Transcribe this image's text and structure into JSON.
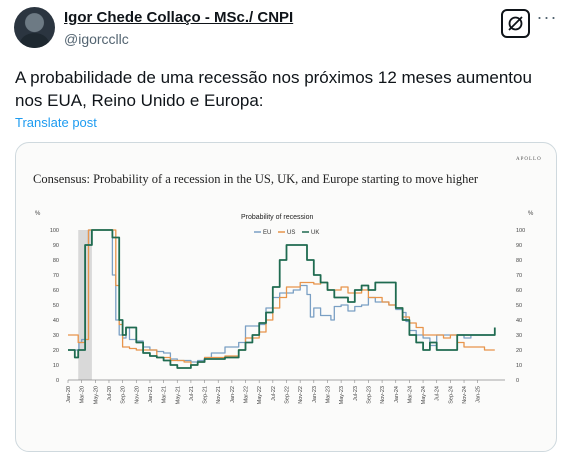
{
  "author": {
    "name": "Igor Chede Collaço - MSc./ CNPI",
    "handle": "@igorccllc"
  },
  "icons": {
    "grok": "grok-icon",
    "more": "more-icon"
  },
  "more_glyph": "···",
  "post": {
    "text": "A probabilidade de uma recessão nos próximos 12 meses aumentou nos EUA, Reino Unido e Europa:",
    "translate_label": "Translate post"
  },
  "chart_data": {
    "type": "line",
    "brand": "APOLLO",
    "title": "Consensus: Probability of a recession in the US, UK, and Europe starting to move higher",
    "legend_title": "Probability of recession",
    "y_unit_left": "%",
    "y_unit_right": "%",
    "ylim": [
      0,
      100
    ],
    "yticks": [
      0,
      10,
      20,
      30,
      40,
      50,
      60,
      70,
      80,
      90,
      100
    ],
    "xlim": [
      0,
      64
    ],
    "xticks": [
      {
        "label": "Jan-20",
        "x": 0
      },
      {
        "label": "Mar-20",
        "x": 2
      },
      {
        "label": "May-20",
        "x": 4
      },
      {
        "label": "Jul-20",
        "x": 6
      },
      {
        "label": "Sep-20",
        "x": 8
      },
      {
        "label": "Nov-20",
        "x": 10
      },
      {
        "label": "Jan-21",
        "x": 12
      },
      {
        "label": "Mar-21",
        "x": 14
      },
      {
        "label": "May-21",
        "x": 16
      },
      {
        "label": "Jul-21",
        "x": 18
      },
      {
        "label": "Sep-21",
        "x": 20
      },
      {
        "label": "Nov-21",
        "x": 22
      },
      {
        "label": "Jan-22",
        "x": 24
      },
      {
        "label": "Mar-22",
        "x": 26
      },
      {
        "label": "May-22",
        "x": 28
      },
      {
        "label": "Jul-22",
        "x": 30
      },
      {
        "label": "Sep-22",
        "x": 32
      },
      {
        "label": "Nov-22",
        "x": 34
      },
      {
        "label": "Jan-23",
        "x": 36
      },
      {
        "label": "Mar-23",
        "x": 38
      },
      {
        "label": "May-23",
        "x": 40
      },
      {
        "label": "Jul-23",
        "x": 42
      },
      {
        "label": "Sep-23",
        "x": 44
      },
      {
        "label": "Nov-23",
        "x": 46
      },
      {
        "label": "Jan-24",
        "x": 48
      },
      {
        "label": "Mar-24",
        "x": 50
      },
      {
        "label": "May-24",
        "x": 52
      },
      {
        "label": "Jul-24",
        "x": 54
      },
      {
        "label": "Sep-24",
        "x": 56
      },
      {
        "label": "Nov-24",
        "x": 58
      },
      {
        "label": "Jan-25",
        "x": 60
      }
    ],
    "recession_band": {
      "from": 1.5,
      "to": 3.5
    },
    "series": [
      {
        "name": "EU",
        "color": "#7a9fc4",
        "points": [
          [
            0,
            20
          ],
          [
            1,
            20
          ],
          [
            1.6,
            25
          ],
          [
            2,
            27
          ],
          [
            2.5,
            90
          ],
          [
            3,
            100
          ],
          [
            4,
            100
          ],
          [
            5,
            100
          ],
          [
            6,
            100
          ],
          [
            6.5,
            70
          ],
          [
            7,
            40
          ],
          [
            7.5,
            30
          ],
          [
            8,
            28
          ],
          [
            8.5,
            35
          ],
          [
            9,
            27
          ],
          [
            10,
            26
          ],
          [
            11,
            22
          ],
          [
            12,
            20
          ],
          [
            13,
            19
          ],
          [
            14,
            18
          ],
          [
            15,
            14
          ],
          [
            16,
            13
          ],
          [
            17,
            13
          ],
          [
            18,
            12
          ],
          [
            19,
            13
          ],
          [
            20,
            15
          ],
          [
            21,
            18
          ],
          [
            22,
            18
          ],
          [
            23,
            22
          ],
          [
            24,
            22
          ],
          [
            25,
            25
          ],
          [
            26,
            36
          ],
          [
            27,
            36
          ],
          [
            28,
            37
          ],
          [
            29,
            48
          ],
          [
            30,
            55
          ],
          [
            31,
            58
          ],
          [
            32,
            58
          ],
          [
            33,
            60
          ],
          [
            34,
            63
          ],
          [
            35,
            57
          ],
          [
            35.5,
            42
          ],
          [
            36,
            48
          ],
          [
            37,
            43
          ],
          [
            38,
            43
          ],
          [
            38.5,
            40
          ],
          [
            39,
            49
          ],
          [
            40,
            50
          ],
          [
            41,
            46
          ],
          [
            42,
            49
          ],
          [
            43,
            50
          ],
          [
            44,
            55
          ],
          [
            45,
            52
          ],
          [
            46,
            52
          ],
          [
            47,
            50
          ],
          [
            48,
            47
          ],
          [
            49,
            45
          ],
          [
            49.5,
            39
          ],
          [
            50,
            33
          ],
          [
            51,
            30
          ],
          [
            52,
            28
          ],
          [
            53,
            23
          ],
          [
            54,
            30
          ],
          [
            55,
            30
          ],
          [
            56,
            30
          ],
          [
            57,
            30
          ],
          [
            58,
            28
          ],
          [
            59,
            30
          ],
          [
            60,
            30
          ],
          [
            61,
            30
          ],
          [
            62,
            30
          ],
          [
            62.5,
            32
          ]
        ]
      },
      {
        "name": "US",
        "color": "#e8944a",
        "points": [
          [
            0,
            30
          ],
          [
            1,
            30
          ],
          [
            1.5,
            25
          ],
          [
            2,
            25
          ],
          [
            2.5,
            27
          ],
          [
            3,
            100
          ],
          [
            3.5,
            100
          ],
          [
            4,
            100
          ],
          [
            5,
            100
          ],
          [
            6,
            100
          ],
          [
            6.5,
            100
          ],
          [
            7,
            63
          ],
          [
            7.5,
            37
          ],
          [
            8,
            22
          ],
          [
            9,
            21
          ],
          [
            10,
            20
          ],
          [
            11,
            20
          ],
          [
            12,
            20
          ],
          [
            13,
            15
          ],
          [
            14,
            15
          ],
          [
            15,
            13
          ],
          [
            16,
            13
          ],
          [
            17,
            12
          ],
          [
            18,
            10
          ],
          [
            19,
            12
          ],
          [
            20,
            15
          ],
          [
            21,
            15
          ],
          [
            22,
            15
          ],
          [
            23,
            16
          ],
          [
            24,
            16
          ],
          [
            25,
            20
          ],
          [
            26,
            28
          ],
          [
            27,
            28
          ],
          [
            28,
            32
          ],
          [
            29,
            40
          ],
          [
            30,
            48
          ],
          [
            31,
            55
          ],
          [
            32,
            62
          ],
          [
            33,
            62
          ],
          [
            34,
            65
          ],
          [
            35,
            65
          ],
          [
            36,
            64
          ],
          [
            37,
            65
          ],
          [
            38,
            60
          ],
          [
            39,
            60
          ],
          [
            40,
            62
          ],
          [
            41,
            58
          ],
          [
            42,
            58
          ],
          [
            43,
            60
          ],
          [
            44,
            55
          ],
          [
            45,
            55
          ],
          [
            46,
            52
          ],
          [
            47,
            50
          ],
          [
            48,
            48
          ],
          [
            49,
            42
          ],
          [
            50,
            38
          ],
          [
            51,
            35
          ],
          [
            52,
            30
          ],
          [
            53,
            30
          ],
          [
            54,
            30
          ],
          [
            55,
            28
          ],
          [
            56,
            30
          ],
          [
            57,
            25
          ],
          [
            58,
            22
          ],
          [
            59,
            22
          ],
          [
            60,
            22
          ],
          [
            61,
            20
          ],
          [
            62,
            20
          ],
          [
            62.5,
            20
          ]
        ]
      },
      {
        "name": "UK",
        "color": "#1f6b50",
        "points": [
          [
            0,
            20
          ],
          [
            1,
            15
          ],
          [
            1.5,
            20
          ],
          [
            2,
            20
          ],
          [
            2.5,
            90
          ],
          [
            3,
            90
          ],
          [
            3.5,
            100
          ],
          [
            4,
            100
          ],
          [
            5,
            100
          ],
          [
            6,
            100
          ],
          [
            6.5,
            95
          ],
          [
            7,
            95
          ],
          [
            7.5,
            40
          ],
          [
            8,
            30
          ],
          [
            8.5,
            35
          ],
          [
            9,
            35
          ],
          [
            10,
            25
          ],
          [
            11,
            18
          ],
          [
            12,
            16
          ],
          [
            13,
            15
          ],
          [
            14,
            13
          ],
          [
            15,
            10
          ],
          [
            16,
            8
          ],
          [
            17,
            8
          ],
          [
            18,
            10
          ],
          [
            19,
            12
          ],
          [
            20,
            14
          ],
          [
            21,
            14
          ],
          [
            22,
            14
          ],
          [
            23,
            15
          ],
          [
            24,
            15
          ],
          [
            25,
            20
          ],
          [
            26,
            25
          ],
          [
            27,
            30
          ],
          [
            28,
            38
          ],
          [
            29,
            45
          ],
          [
            30,
            62
          ],
          [
            31,
            80
          ],
          [
            32,
            90
          ],
          [
            33,
            90
          ],
          [
            34,
            90
          ],
          [
            35,
            80
          ],
          [
            36,
            70
          ],
          [
            37,
            65
          ],
          [
            38,
            60
          ],
          [
            39,
            55
          ],
          [
            40,
            55
          ],
          [
            41,
            52
          ],
          [
            42,
            60
          ],
          [
            43,
            63
          ],
          [
            44,
            60
          ],
          [
            45,
            65
          ],
          [
            46,
            65
          ],
          [
            47,
            65
          ],
          [
            48,
            48
          ],
          [
            49,
            40
          ],
          [
            50,
            30
          ],
          [
            51,
            25
          ],
          [
            52,
            20
          ],
          [
            53,
            25
          ],
          [
            54,
            20
          ],
          [
            55,
            20
          ],
          [
            56,
            20
          ],
          [
            57,
            30
          ],
          [
            58,
            30
          ],
          [
            59,
            30
          ],
          [
            60,
            30
          ],
          [
            61,
            30
          ],
          [
            62,
            30
          ],
          [
            62.5,
            35
          ]
        ]
      }
    ]
  }
}
